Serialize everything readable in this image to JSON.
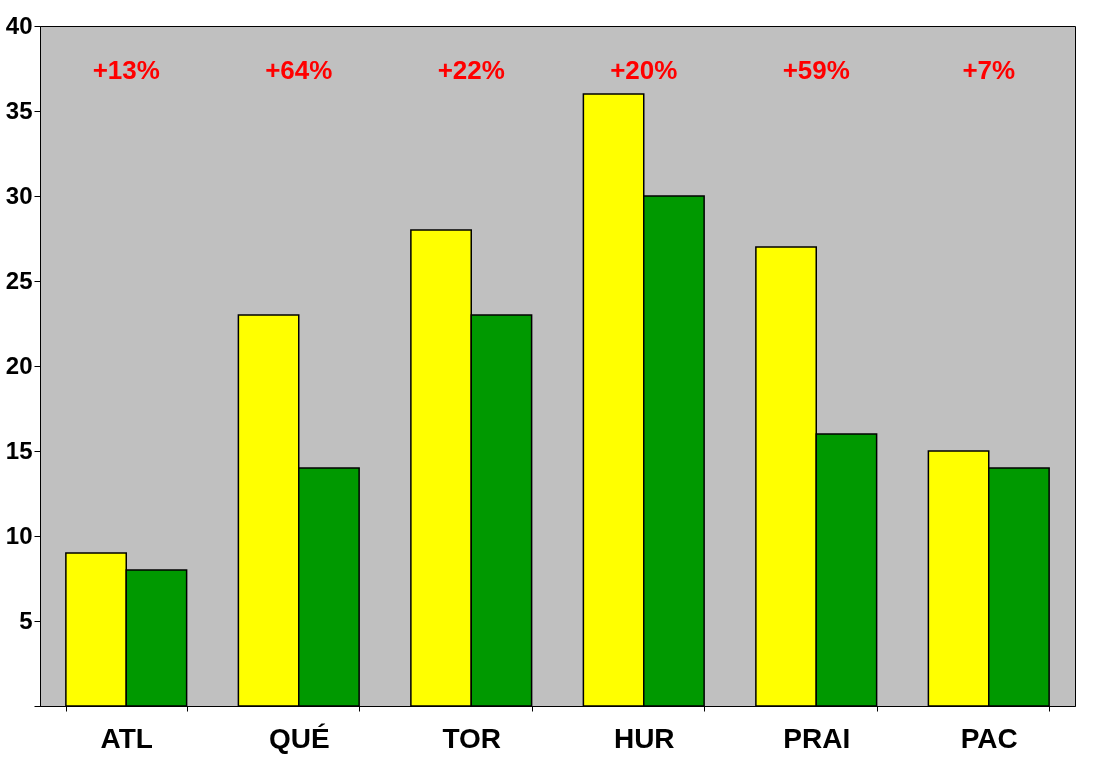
{
  "chart_data": {
    "type": "bar",
    "categories": [
      "ATL",
      "QUÉ",
      "TOR",
      "HUR",
      "PRAI",
      "PAC"
    ],
    "series": [
      {
        "color": "#ffff00",
        "values": [
          9,
          23,
          28,
          36,
          27,
          15
        ]
      },
      {
        "color": "#009900",
        "values": [
          8,
          14,
          23,
          30,
          16,
          14
        ]
      }
    ],
    "ylim": [
      0,
      40
    ],
    "yticks": [
      {
        "value": 0,
        "label": null
      },
      5,
      10,
      15,
      20,
      25,
      30,
      35,
      40
    ],
    "grid": false,
    "legend": false,
    "annotations": [
      "+13%",
      "+64%",
      "+22%",
      "+20%",
      "+59%",
      "+7%"
    ]
  }
}
